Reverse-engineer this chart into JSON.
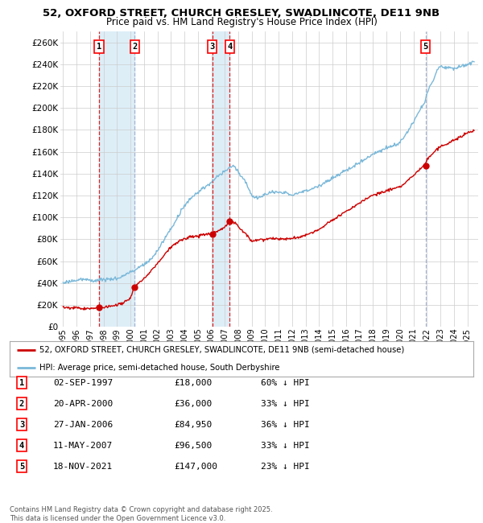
{
  "title_line1": "52, OXFORD STREET, CHURCH GRESLEY, SWADLINCOTE, DE11 9NB",
  "title_line2": "Price paid vs. HM Land Registry's House Price Index (HPI)",
  "ylim": [
    0,
    270000
  ],
  "yticks": [
    0,
    20000,
    40000,
    60000,
    80000,
    100000,
    120000,
    140000,
    160000,
    180000,
    200000,
    220000,
    240000,
    260000
  ],
  "legend_line1": "52, OXFORD STREET, CHURCH GRESLEY, SWADLINCOTE, DE11 9NB (semi-detached house)",
  "legend_line2": "HPI: Average price, semi-detached house, South Derbyshire",
  "table_rows": [
    [
      "1",
      "02-SEP-1997",
      "£18,000",
      "60% ↓ HPI"
    ],
    [
      "2",
      "20-APR-2000",
      "£36,000",
      "33% ↓ HPI"
    ],
    [
      "3",
      "27-JAN-2006",
      "£84,950",
      "36% ↓ HPI"
    ],
    [
      "4",
      "11-MAY-2007",
      "£96,500",
      "33% ↓ HPI"
    ],
    [
      "5",
      "18-NOV-2021",
      "£147,000",
      "23% ↓ HPI"
    ]
  ],
  "sale_dates_decimal": [
    1997.67,
    2000.31,
    2006.07,
    2007.36,
    2021.89
  ],
  "sale_prices": [
    18000,
    36000,
    84950,
    96500,
    147000
  ],
  "sale_labels": [
    "1",
    "2",
    "3",
    "4",
    "5"
  ],
  "hpi_color": "#7ab8d9",
  "hpi_fill_color": "#ddeef7",
  "price_color": "#cc0000",
  "vline_color": "#ff0000",
  "vline_dash_color": "#aaaacc",
  "footer": "Contains HM Land Registry data © Crown copyright and database right 2025.\nThis data is licensed under the Open Government Licence v3.0.",
  "background_color": "#ffffff",
  "grid_color": "#cccccc",
  "xlim_left": 1994.8,
  "xlim_right": 2025.8
}
